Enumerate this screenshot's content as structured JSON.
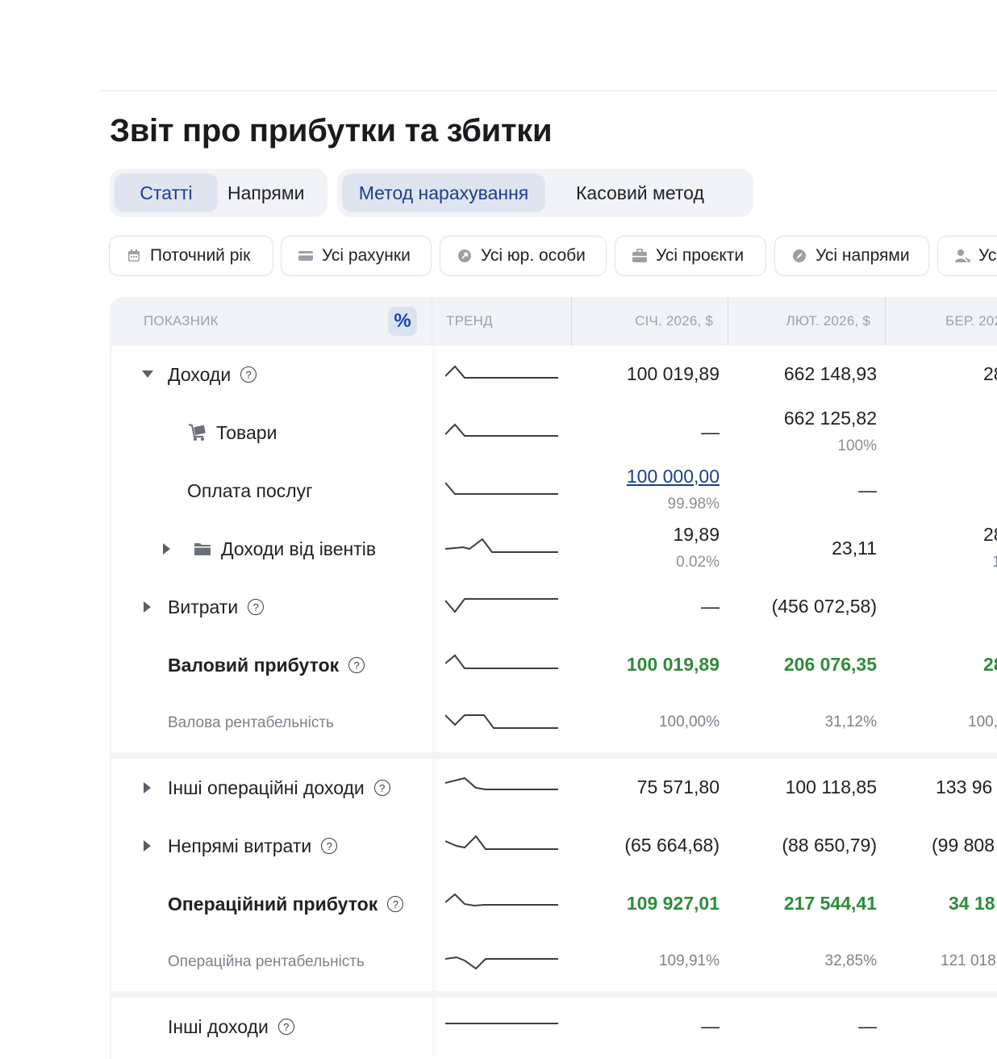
{
  "page": {
    "title": "Звіт про прибутки та збитки"
  },
  "view_toggle": {
    "articles": "Статті",
    "directions": "Напрями"
  },
  "method_toggle": {
    "accrual": "Метод нарахування",
    "cash": "Касовий метод"
  },
  "filters": {
    "period": "Поточний рік",
    "accounts": "Усі рахунки",
    "legal_entities": "Усі юр. особи",
    "projects": "Усі проєкти",
    "directions": "Усі напрями",
    "counterparties": "Ус"
  },
  "table": {
    "headers": {
      "indicator": "ПОКАЗНИК",
      "trend": "ТРЕНД",
      "jan": "СІЧ. 2026, $",
      "feb": "ЛЮТ. 2026, $",
      "mar": "БЕР. 202"
    },
    "percent_toggle": "%",
    "rows": {
      "income": {
        "label": "Доходи",
        "jan": "100 019,89",
        "feb": "662 148,93",
        "mar": "28"
      },
      "goods": {
        "label": "Товари",
        "jan": "—",
        "feb": "662 125,82",
        "feb_sub": "100%"
      },
      "services": {
        "label": "Оплата послуг",
        "jan": "100 000,00",
        "jan_sub": "99.98%",
        "feb": "—"
      },
      "events": {
        "label": "Доходи від івентів",
        "jan": "19,89",
        "jan_sub": "0.02%",
        "feb": "23,11",
        "mar": "28",
        "mar_sub": "1"
      },
      "expenses": {
        "label": "Витрати",
        "jan": "—",
        "feb": "(456 072,58)"
      },
      "gross_profit": {
        "label": "Валовий прибуток",
        "jan": "100 019,89",
        "feb": "206 076,35",
        "mar": "28"
      },
      "gross_margin": {
        "label": "Валова рентабельність",
        "jan": "100,00%",
        "feb": "31,12%",
        "mar": "100,"
      },
      "other_op_income": {
        "label": "Інші операційні доходи",
        "jan": "75 571,80",
        "feb": "100 118,85",
        "mar": "133 96"
      },
      "indirect_expenses": {
        "label": "Непрямі витрати",
        "jan": "(65 664,68)",
        "feb": "(88 650,79)",
        "mar": "(99 808"
      },
      "operating_profit": {
        "label": "Операційний прибуток",
        "jan": "109 927,01",
        "feb": "217 544,41",
        "mar": "34 18"
      },
      "operating_margin": {
        "label": "Операційна рентабельність",
        "jan": "109,91%",
        "feb": "32,85%",
        "mar": "121 018"
      },
      "other_income": {
        "label": "Інші доходи",
        "jan": "—",
        "feb": "—"
      }
    }
  }
}
